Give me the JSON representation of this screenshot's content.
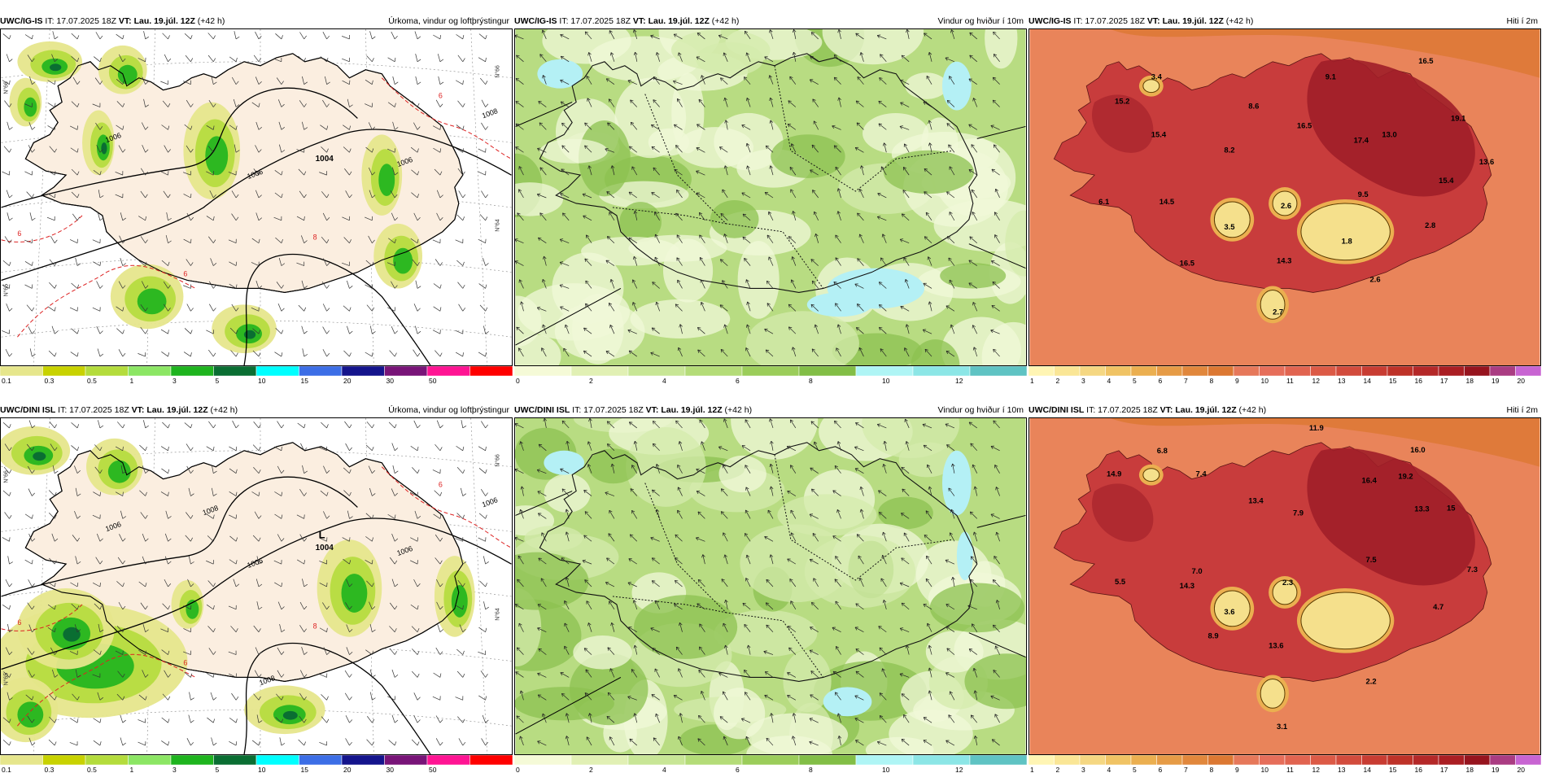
{
  "panels": [
    {
      "model": "UWC/IG-IS",
      "it": "IT: 17.07.2025 18Z",
      "vt_label": "VT:",
      "vt_value": "Lau. 19.júl. 12Z",
      "lead": "(+42 h)",
      "title": "Úrkoma, vindur og loftþrýstingur",
      "low_label": "",
      "low_value": "1004",
      "isobars": [
        "1006",
        "1006",
        "1006",
        "1008"
      ],
      "temp_contours": [
        "6",
        "6",
        "6",
        "8"
      ],
      "lat_labels": [
        "N°66",
        "N°65",
        "N°64",
        "N°66"
      ]
    },
    {
      "model": "UWC/IG-IS",
      "it": "IT: 17.07.2025 18Z",
      "vt_label": "VT:",
      "vt_value": "Lau. 19.júl. 12Z",
      "lead": "(+42 h)",
      "title": "Vindur og hviður í 10m"
    },
    {
      "model": "UWC/IG-IS",
      "it": "IT: 17.07.2025 18Z",
      "vt_label": "VT:",
      "vt_value": "Lau. 19.júl. 12Z",
      "lead": "(+42 h)",
      "title": "Hiti í 2m",
      "temps": [
        "3.4",
        "9.1",
        "16.5",
        "15.2",
        "8.6",
        "15.4",
        "16.5",
        "17.4",
        "13.0",
        "19.1",
        "8.2",
        "13.6",
        "15.4",
        "9.5",
        "6.1",
        "14.5",
        "2.6",
        "2.8",
        "3.5",
        "1.8",
        "14.3",
        "16.5",
        "2.6",
        "2.7"
      ]
    },
    {
      "model": "UWC/DINI ISL",
      "it": "IT: 17.07.2025 18Z",
      "vt_label": "VT:",
      "vt_value": "Lau. 19.júl. 12Z",
      "lead": "(+42 h)",
      "title": "Úrkoma, vindur og loftþrýstingur",
      "low_label": "L",
      "low_value": "1004",
      "isobars": [
        "1006",
        "1006",
        "1006",
        "1006",
        "1008",
        "1008"
      ],
      "temp_contours": [
        "6",
        "6",
        "6",
        "8"
      ],
      "lat_labels": [
        "N°66",
        "N°65",
        "N°64",
        "N°66"
      ]
    },
    {
      "model": "UWC/DINI ISL",
      "it": "IT: 17.07.2025 18Z",
      "vt_label": "VT:",
      "vt_value": "Lau. 19.júl. 12Z",
      "lead": "(+42 h)",
      "title": "Vindur og hviður í 10m"
    },
    {
      "model": "UWC/DINI ISL",
      "it": "IT: 17.07.2025 18Z",
      "vt_label": "VT:",
      "vt_value": "Lau. 19.júl. 12Z",
      "lead": "(+42 h)",
      "title": "Hiti í 2m",
      "temps": [
        "11.9",
        "6.8",
        "16.0",
        "14.9",
        "7.4",
        "16.4",
        "19.2",
        "13.4",
        "7.9",
        "13.3",
        "15",
        "7.0",
        "7.5",
        "7.3",
        "5.5",
        "14.3",
        "2.3",
        "3.6",
        "4.7",
        "8.9",
        "13.6",
        "2.2",
        "3.1"
      ]
    }
  ],
  "colorbars": {
    "precip": {
      "ticks": [
        "0.1",
        "0.3",
        "0.5",
        "1",
        "3",
        "5",
        "10",
        "15",
        "20",
        "30",
        "50"
      ],
      "colors": [
        "#e6e68c",
        "#c8d200",
        "#b4dc3c",
        "#8ce664",
        "#1eb41e",
        "#0a6e32",
        "#00ffff",
        "#3c6ee6",
        "#14148c",
        "#781478",
        "#ff1493",
        "#ff0000"
      ]
    },
    "wind": {
      "ticks": [
        "0",
        "2",
        "4",
        "6",
        "8",
        "10",
        "12"
      ],
      "colors": [
        "#f5fad7",
        "#e1f0b4",
        "#c8e696",
        "#b4dc78",
        "#9bcd5a",
        "#82be46",
        "#aff5f5",
        "#8ce6e6",
        "#5fc3c3"
      ]
    },
    "temp": {
      "ticks": [
        "1",
        "2",
        "3",
        "4",
        "5",
        "6",
        "7",
        "8",
        "9",
        "10",
        "11",
        "12",
        "13",
        "14",
        "15",
        "16",
        "17",
        "18",
        "19",
        "20"
      ],
      "colors": [
        "#fff5b4",
        "#fae696",
        "#f5d782",
        "#f0c364",
        "#ebaf50",
        "#e69b46",
        "#e1873c",
        "#dc7832",
        "#e6785a",
        "#e66e5a",
        "#e16450",
        "#dc5a46",
        "#d24b3c",
        "#c83c32",
        "#be3228",
        "#b42828",
        "#aa1e23",
        "#96141e",
        "#aa3c82",
        "#c864d2"
      ]
    }
  },
  "colors": {
    "land_precip": "#fbeee0",
    "sea_precip": "#ffffff",
    "wind_light": "#f0f8d8",
    "wind_mid": "#b8dc82",
    "wind_dark": "#8cc150",
    "wind_cyan": "#b4f0f5",
    "temp_sea": "#e9845a",
    "temp_land": "#c83c3c",
    "temp_warm": "#a01e28",
    "temp_cold": "#f5e08c"
  }
}
